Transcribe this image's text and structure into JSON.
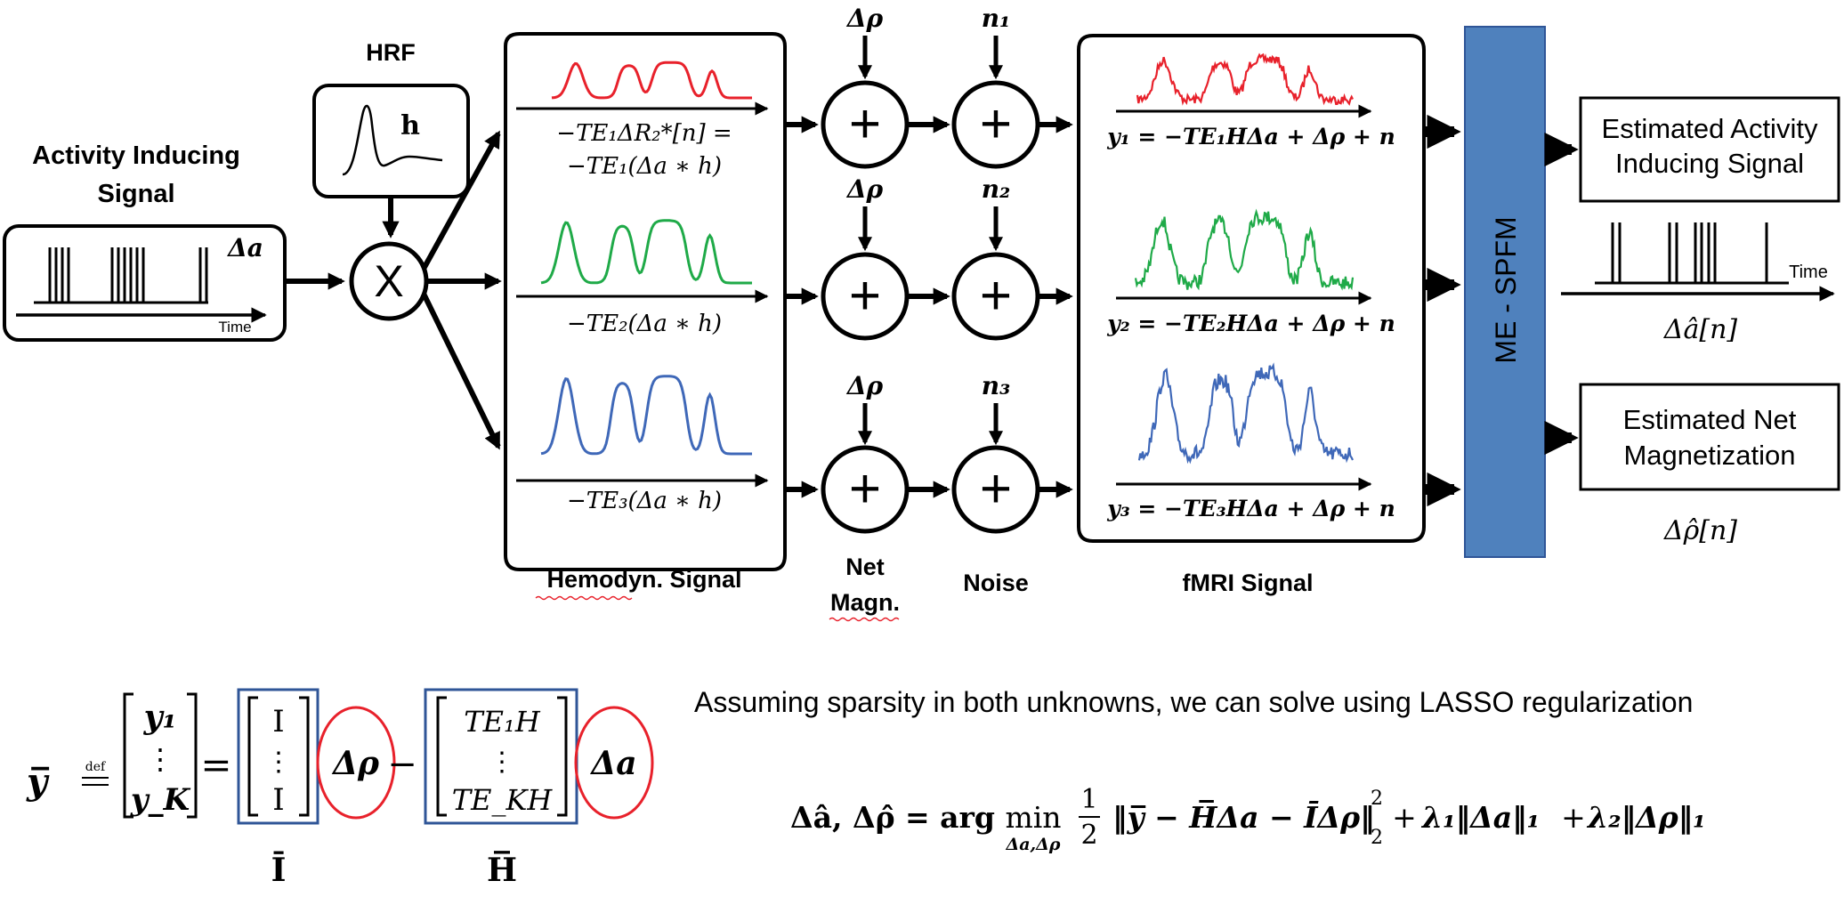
{
  "colors": {
    "red": "#e8212b",
    "green": "#1faa48",
    "blue": "#3f68b8",
    "spfm_fill": "#4f81bd",
    "frame_blue": "#2f5597",
    "circle_red": "#e8212b",
    "ink": "#000000"
  },
  "labels": {
    "activity_title_1": "Activity Inducing",
    "activity_title_2": "Signal",
    "delta_a": "Δa",
    "time": "Time",
    "hrf": "HRF",
    "h": "h",
    "multiply": "X",
    "hemodyn_caption": "Hemodyn. Signal",
    "net_magn_caption_1": "Net",
    "net_magn_caption_2": "Magn.",
    "noise_caption": "Noise",
    "fmri_caption": "fMRI Signal",
    "spfm": "ME - SPFM",
    "delta_rho": "Δρ",
    "plus": "+",
    "n1": "n₁",
    "n2": "n₂",
    "n3": "n₃",
    "hemo_1a": "−TE₁ΔR₂*[n] =",
    "hemo_1b": "−TE₁(Δa ∗ h)",
    "hemo_2": "−TE₂(Δa ∗ h)",
    "hemo_3": "−TE₃(Δa ∗ h)",
    "fmri_1": "y₁ = −TE₁HΔa + Δρ + n",
    "fmri_2": "y₂ = −TE₂HΔa + Δρ + n",
    "fmri_3": "y₃ = −TE₃HΔa + Δρ + n",
    "est_activity_1": "Estimated Activity",
    "est_activity_2": "Inducing Signal",
    "est_activity_symbol": "Δâ[n]",
    "est_net_1": "Estimated Net",
    "est_net_2": "Magnetization",
    "est_net_symbol": "Δρ̂[n]"
  },
  "equations": {
    "ybar_lhs": "y̅",
    "def": "def",
    "eq_sign": "=",
    "y1": "y₁",
    "vdots": "⋮",
    "yK": "y_K",
    "I": "I",
    "Ibar": "Ī",
    "minus": "−",
    "TE1H": "TE₁H",
    "TEKH": "TE_KH",
    "Hbar": "H̅",
    "delta_rho": "Δρ",
    "delta_a": "Δa",
    "assumption": "Assuming sparsity in both unknowns, we can solve using LASSO regularization",
    "lasso_lhs": "Δâ, Δρ̂ = arg",
    "min": "min",
    "min_sub": "Δa,Δρ",
    "half_num": "1",
    "half_den": "2",
    "norm_body": "‖y̅ − H̅Δa − ĪΔρ‖",
    "norm_sup": "2",
    "norm_sub": "2",
    "plus": "+",
    "lambda1_term": "λ₁‖Δa‖₁",
    "lambda2_term": "λ₂‖Δρ‖₁"
  }
}
